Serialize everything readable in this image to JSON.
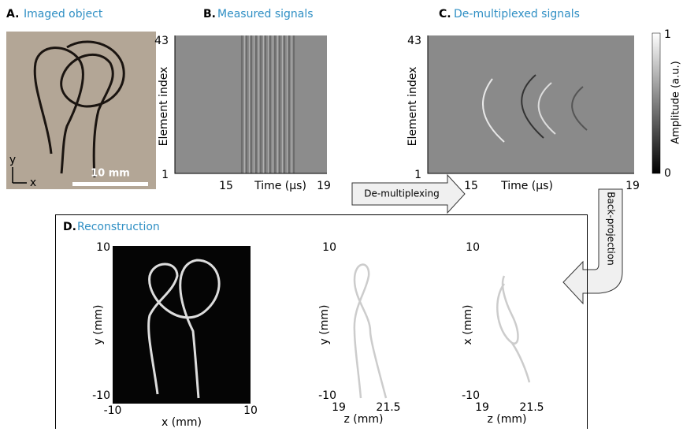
{
  "panels": {
    "a": {
      "letter": "A.",
      "title": "Imaged object",
      "scale_bar": "10 mm",
      "axis_y": "y",
      "axis_x": "x"
    },
    "b": {
      "letter": "B.",
      "title": "Measured signals",
      "y_label": "Element index",
      "y_ticks": [
        "43",
        "1"
      ],
      "x_ticks": [
        "15",
        "19"
      ],
      "x_label": "Time (μs)"
    },
    "c": {
      "letter": "C.",
      "title": "De-multiplexed signals",
      "y_label": "Element index",
      "y_ticks": [
        "43",
        "1"
      ],
      "x_ticks": [
        "15",
        "19"
      ],
      "x_label": "Time (μs)",
      "colorbar_label": "Amplitude (a.u.)",
      "colorbar_ticks": [
        "1",
        "0"
      ]
    },
    "d": {
      "letter": "D.",
      "title": "Reconstruction",
      "views": [
        {
          "y_label": "y (mm)",
          "y_ticks": [
            "10",
            "-10"
          ],
          "x_ticks": [
            "-10",
            "10"
          ],
          "x_label": "x (mm)"
        },
        {
          "y_label": "y (mm)",
          "y_ticks": [
            "10",
            "-10"
          ],
          "x_ticks": [
            "19",
            "21.5"
          ],
          "x_label": "z (mm)"
        },
        {
          "y_label": "x (mm)",
          "y_ticks": [
            "10",
            "-10"
          ],
          "x_ticks": [
            "19",
            "21.5"
          ],
          "x_label": "z (mm)"
        }
      ]
    }
  },
  "arrows": {
    "demultiplexing": "De-multiplexing",
    "back_projection": "Back-projection"
  }
}
